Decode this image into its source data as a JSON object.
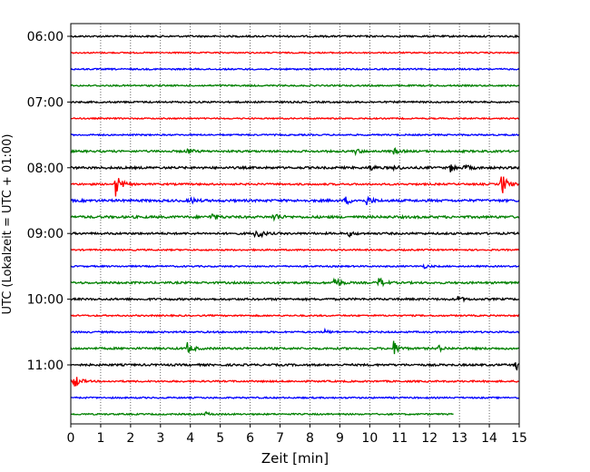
{
  "chart_data": {
    "type": "line",
    "title": "",
    "xlabel": "Zeit  [min]",
    "ylabel": "UTC (Lokalzeit = UTC + 01:00)",
    "xlim": [
      0,
      15
    ],
    "x_ticks": [
      "0",
      "1",
      "2",
      "3",
      "4",
      "5",
      "6",
      "7",
      "8",
      "9",
      "10",
      "11",
      "12",
      "13",
      "14",
      "15"
    ],
    "y_ticks": [
      "06:00",
      "07:00",
      "08:00",
      "09:00",
      "10:00",
      "11:00"
    ],
    "grid": "vertical-dotted",
    "trace_colors": [
      "#000000",
      "#ff0000",
      "#0000ff",
      "#008000"
    ],
    "traces": [
      {
        "start": "06:00",
        "color": "#000000",
        "noise": 0.9,
        "events": []
      },
      {
        "start": "06:15",
        "color": "#ff0000",
        "noise": 0.7,
        "events": []
      },
      {
        "start": "06:30",
        "color": "#0000ff",
        "noise": 0.8,
        "events": []
      },
      {
        "start": "06:45",
        "color": "#008000",
        "noise": 0.8,
        "events": []
      },
      {
        "start": "07:00",
        "color": "#000000",
        "noise": 0.9,
        "events": []
      },
      {
        "start": "07:15",
        "color": "#ff0000",
        "noise": 0.7,
        "events": []
      },
      {
        "start": "07:30",
        "color": "#0000ff",
        "noise": 0.8,
        "events": []
      },
      {
        "start": "07:45",
        "color": "#008000",
        "noise": 1.1,
        "events": [
          {
            "t": 3.9,
            "amp": 3
          },
          {
            "t": 9.5,
            "amp": 3
          },
          {
            "t": 10.8,
            "amp": 3
          }
        ]
      },
      {
        "start": "08:00",
        "color": "#000000",
        "noise": 1.2,
        "events": [
          {
            "t": 10.0,
            "amp": 3
          },
          {
            "t": 10.8,
            "amp": 3
          },
          {
            "t": 12.7,
            "amp": 4
          },
          {
            "t": 13.2,
            "amp": 3
          }
        ]
      },
      {
        "start": "08:15",
        "color": "#ff0000",
        "noise": 1.0,
        "events": [
          {
            "t": 1.5,
            "amp": 14
          },
          {
            "t": 14.4,
            "amp": 14
          }
        ]
      },
      {
        "start": "08:30",
        "color": "#0000ff",
        "noise": 1.3,
        "events": [
          {
            "t": 4.0,
            "amp": 3
          },
          {
            "t": 9.2,
            "amp": 4
          },
          {
            "t": 9.9,
            "amp": 5
          }
        ]
      },
      {
        "start": "08:45",
        "color": "#008000",
        "noise": 1.3,
        "events": [
          {
            "t": 4.7,
            "amp": 4
          },
          {
            "t": 6.8,
            "amp": 5
          }
        ]
      },
      {
        "start": "09:00",
        "color": "#000000",
        "noise": 1.1,
        "events": [
          {
            "t": 6.2,
            "amp": 8
          },
          {
            "t": 9.3,
            "amp": 3
          }
        ]
      },
      {
        "start": "09:15",
        "color": "#ff0000",
        "noise": 0.8,
        "events": []
      },
      {
        "start": "09:30",
        "color": "#0000ff",
        "noise": 0.8,
        "events": [
          {
            "t": 11.8,
            "amp": 2
          }
        ]
      },
      {
        "start": "09:45",
        "color": "#008000",
        "noise": 1.1,
        "events": [
          {
            "t": 8.8,
            "amp": 8
          },
          {
            "t": 10.3,
            "amp": 6
          }
        ]
      },
      {
        "start": "10:00",
        "color": "#000000",
        "noise": 1.1,
        "events": [
          {
            "t": 12.9,
            "amp": 4
          }
        ]
      },
      {
        "start": "10:15",
        "color": "#ff0000",
        "noise": 0.8,
        "events": []
      },
      {
        "start": "10:30",
        "color": "#0000ff",
        "noise": 0.9,
        "events": [
          {
            "t": 8.5,
            "amp": 2
          }
        ]
      },
      {
        "start": "10:45",
        "color": "#008000",
        "noise": 1.1,
        "events": [
          {
            "t": 3.9,
            "amp": 6
          },
          {
            "t": 10.8,
            "amp": 8
          },
          {
            "t": 12.3,
            "amp": 3
          }
        ]
      },
      {
        "start": "11:00",
        "color": "#000000",
        "noise": 1.1,
        "events": [
          {
            "t": 14.9,
            "amp": 6
          }
        ]
      },
      {
        "start": "11:15",
        "color": "#ff0000",
        "noise": 0.9,
        "events": [
          {
            "t": 0.1,
            "amp": 9
          }
        ]
      },
      {
        "start": "11:30",
        "color": "#0000ff",
        "noise": 0.8,
        "events": []
      },
      {
        "start": "11:45",
        "color": "#008000",
        "noise": 0.8,
        "end_min": 12.8,
        "events": [
          {
            "t": 4.5,
            "amp": 2
          }
        ]
      }
    ]
  }
}
